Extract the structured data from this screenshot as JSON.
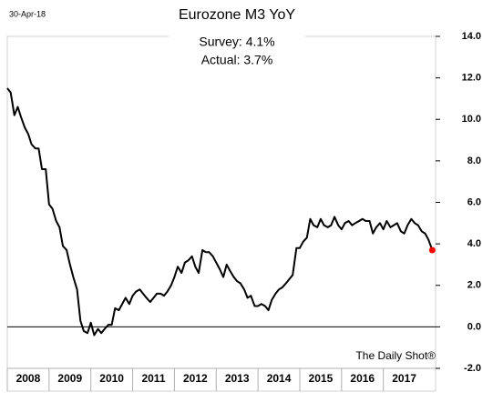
{
  "chart_data": {
    "type": "line",
    "date": "30-Apr-18",
    "title": "Eurozone M3 YoY",
    "annotations": [
      "Survey: 4.1%",
      "Actual:  3.7%"
    ],
    "source": "The Daily Shot®",
    "categories": [
      "2008",
      "2009",
      "2010",
      "2011",
      "2012",
      "2013",
      "2014",
      "2015",
      "2016",
      "2017"
    ],
    "x": [
      2008,
      2008.08,
      2008.17,
      2008.25,
      2008.33,
      2008.42,
      2008.5,
      2008.58,
      2008.67,
      2008.75,
      2008.83,
      2008.92,
      2009,
      2009.08,
      2009.17,
      2009.25,
      2009.33,
      2009.42,
      2009.5,
      2009.58,
      2009.67,
      2009.75,
      2009.83,
      2009.92,
      2010,
      2010.08,
      2010.17,
      2010.25,
      2010.33,
      2010.42,
      2010.5,
      2010.58,
      2010.67,
      2010.75,
      2010.83,
      2010.92,
      2011,
      2011.08,
      2011.17,
      2011.25,
      2011.33,
      2011.42,
      2011.5,
      2011.58,
      2011.67,
      2011.75,
      2011.83,
      2011.92,
      2012,
      2012.08,
      2012.17,
      2012.25,
      2012.33,
      2012.42,
      2012.5,
      2012.58,
      2012.67,
      2012.75,
      2012.83,
      2012.92,
      2013,
      2013.08,
      2013.17,
      2013.25,
      2013.33,
      2013.42,
      2013.5,
      2013.58,
      2013.67,
      2013.75,
      2013.83,
      2013.92,
      2014,
      2014.08,
      2014.17,
      2014.25,
      2014.33,
      2014.42,
      2014.5,
      2014.58,
      2014.67,
      2014.75,
      2014.83,
      2014.92,
      2015,
      2015.08,
      2015.17,
      2015.25,
      2015.33,
      2015.42,
      2015.5,
      2015.58,
      2015.67,
      2015.75,
      2015.83,
      2015.92,
      2016,
      2016.08,
      2016.17,
      2016.25,
      2016.33,
      2016.42,
      2016.5,
      2016.58,
      2016.67,
      2016.75,
      2016.83,
      2016.92,
      2017,
      2017.08,
      2017.17,
      2017.25,
      2017.33,
      2017.42,
      2017.5,
      2017.58,
      2017.67,
      2017.75,
      2017.83,
      2017.92,
      2018,
      2018.08,
      2018.17
    ],
    "series": [
      {
        "color": "#000000",
        "end_marker_color": "#ff0000",
        "values": [
          11.5,
          11.3,
          10.2,
          10.6,
          10.1,
          9.6,
          9.3,
          8.8,
          8.6,
          8.6,
          7.6,
          7.6,
          5.9,
          5.7,
          5.1,
          4.8,
          3.9,
          3.7,
          3.0,
          2.4,
          1.8,
          0.3,
          -0.2,
          -0.3,
          0.2,
          -0.4,
          -0.1,
          -0.3,
          -0.1,
          0.1,
          0.1,
          0.9,
          0.8,
          1.1,
          1.4,
          1.1,
          1.5,
          1.7,
          1.8,
          1.6,
          1.4,
          1.2,
          1.4,
          1.6,
          1.6,
          1.5,
          1.7,
          2.0,
          2.4,
          2.9,
          2.6,
          3.1,
          3.2,
          3.4,
          2.9,
          2.6,
          3.7,
          3.6,
          3.6,
          3.4,
          3.1,
          2.8,
          2.4,
          3.0,
          2.7,
          2.4,
          2.2,
          2.1,
          1.8,
          1.4,
          1.5,
          1.0,
          1.0,
          1.1,
          1.0,
          0.8,
          1.3,
          1.6,
          1.8,
          1.9,
          2.1,
          2.3,
          2.5,
          3.8,
          3.8,
          4.1,
          4.3,
          5.2,
          4.9,
          4.8,
          5.2,
          4.9,
          4.8,
          4.9,
          5.3,
          4.9,
          4.7,
          5.0,
          5.1,
          4.9,
          5.0,
          5.1,
          5.2,
          5.1,
          5.1,
          4.5,
          4.8,
          5.0,
          4.7,
          5.1,
          4.8,
          4.9,
          5.0,
          4.6,
          4.5,
          4.9,
          5.2,
          5.0,
          4.9,
          4.6,
          4.5,
          4.2,
          3.7
        ]
      }
    ],
    "xlim": [
      2008,
      2018.25
    ],
    "ylim": [
      -2,
      14
    ],
    "yticks": [
      {
        "value": -2,
        "label": "-2.0"
      },
      {
        "value": 0,
        "label": "0.0"
      },
      {
        "value": 2,
        "label": "2.0"
      },
      {
        "value": 4,
        "label": "4.0"
      },
      {
        "value": 6,
        "label": "6.0"
      },
      {
        "value": 8,
        "label": "8.0"
      },
      {
        "value": 10,
        "label": "10.0"
      },
      {
        "value": 12,
        "label": "12.0"
      },
      {
        "value": 14,
        "label": "14.0"
      }
    ],
    "grid": false
  }
}
